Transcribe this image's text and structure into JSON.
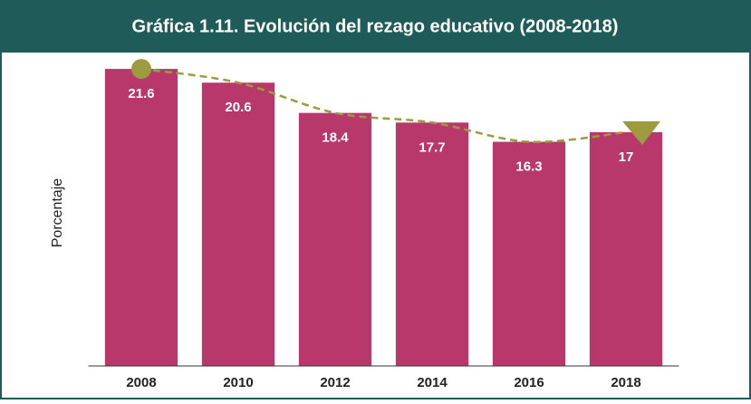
{
  "chart_data": {
    "type": "bar",
    "title": "Gráfica 1.11. Evolución del rezago educativo (2008-2018)",
    "ylabel": "Porcentaje",
    "categories": [
      "2008",
      "2010",
      "2012",
      "2014",
      "2016",
      "2018"
    ],
    "values": [
      21.6,
      20.6,
      18.4,
      17.7,
      16.3,
      17
    ],
    "color": "#b8386b",
    "trend_color": "#9c9b3e",
    "ylim": [
      0,
      22
    ]
  }
}
